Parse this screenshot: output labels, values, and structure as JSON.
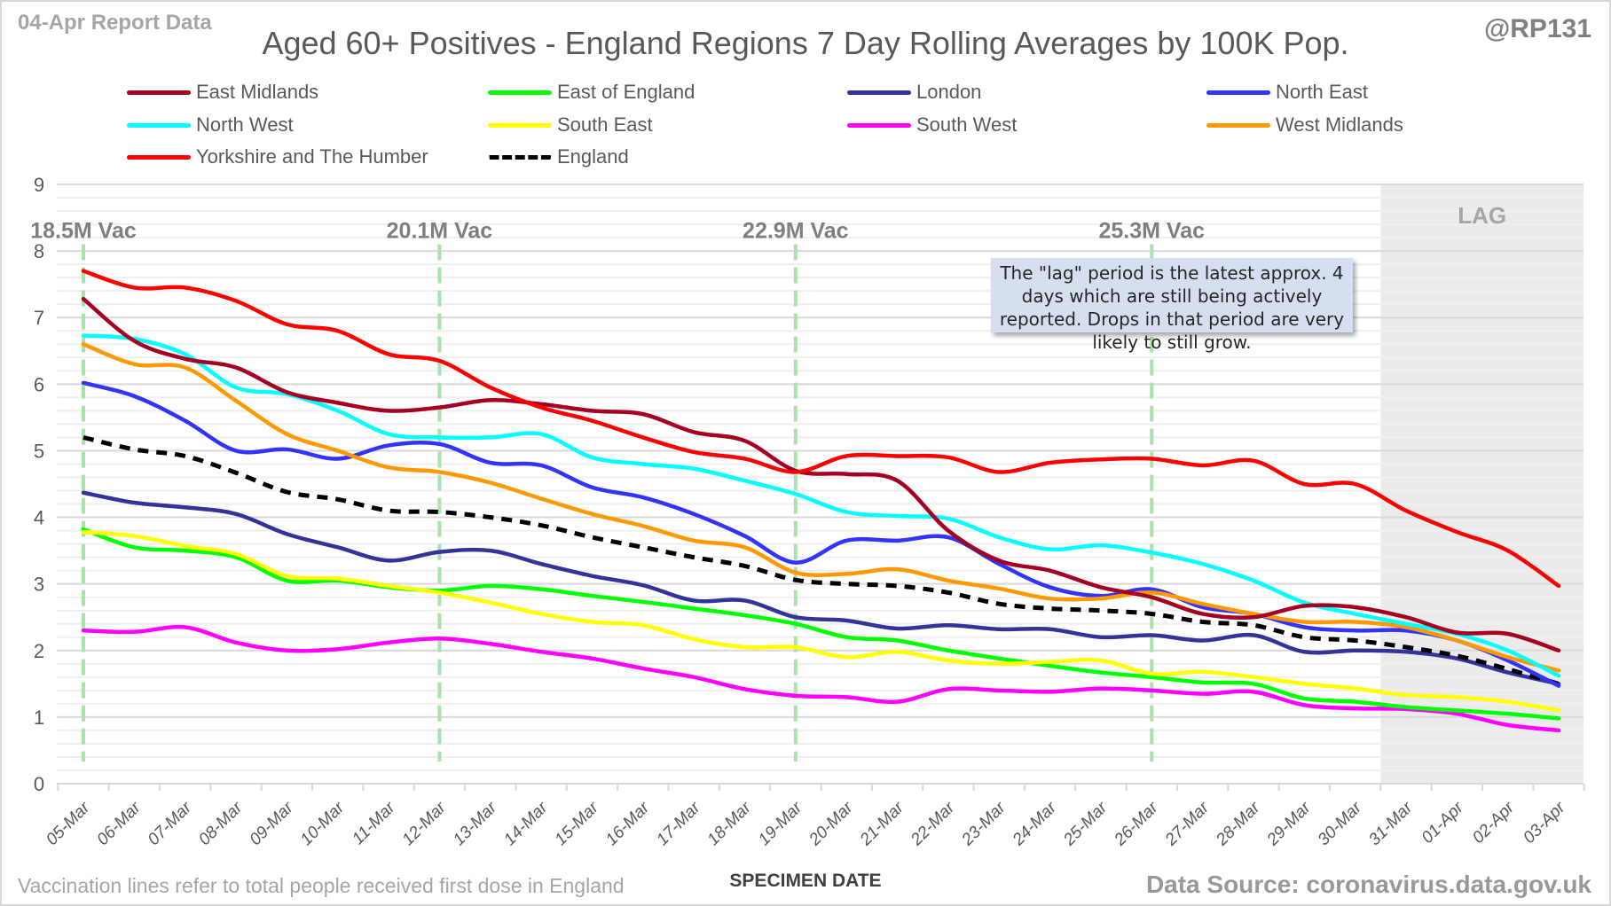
{
  "header": {
    "report_date": "04-Apr Report Data",
    "title": "Aged 60+ Positives - England Regions 7 Day Rolling Averages by 100K Pop.",
    "handle": "@RP131"
  },
  "footer": {
    "footnote": "Vaccination lines refer to total people received first dose in England",
    "source": "Data Source: coronavirus.data.gov.uk"
  },
  "note": "The \"lag\" period is the latest approx. 4 days which are still being actively reported. Drops in that period are very likely to still grow.",
  "chart_data": {
    "type": "line",
    "title": "Aged 60+ Positives - England Regions 7 Day Rolling Averages by 100K Pop.",
    "xlabel": "SPECIMEN DATE",
    "ylabel": "",
    "ylim": [
      0,
      9
    ],
    "yticks": [
      0,
      1,
      2,
      3,
      4,
      5,
      6,
      7,
      8,
      9
    ],
    "grid": true,
    "legend_position": "top",
    "x": [
      "05-Mar",
      "06-Mar",
      "07-Mar",
      "08-Mar",
      "09-Mar",
      "10-Mar",
      "11-Mar",
      "12-Mar",
      "13-Mar",
      "14-Mar",
      "15-Mar",
      "16-Mar",
      "17-Mar",
      "18-Mar",
      "19-Mar",
      "20-Mar",
      "21-Mar",
      "22-Mar",
      "23-Mar",
      "24-Mar",
      "25-Mar",
      "26-Mar",
      "27-Mar",
      "28-Mar",
      "29-Mar",
      "30-Mar",
      "31-Mar",
      "01-Apr",
      "02-Apr",
      "03-Apr"
    ],
    "series": [
      {
        "name": "East Midlands",
        "color": "#a50021",
        "dashed": false,
        "values": [
          7.28,
          6.65,
          6.38,
          6.25,
          5.88,
          5.72,
          5.6,
          5.65,
          5.76,
          5.7,
          5.6,
          5.55,
          5.28,
          5.15,
          4.7,
          4.65,
          4.55,
          3.8,
          3.35,
          3.2,
          2.95,
          2.8,
          2.55,
          2.5,
          2.67,
          2.65,
          2.5,
          2.27,
          2.25,
          2.0
        ]
      },
      {
        "name": "East of England",
        "color": "#00ff00",
        "dashed": false,
        "values": [
          3.82,
          3.55,
          3.5,
          3.4,
          3.05,
          3.05,
          2.95,
          2.9,
          2.97,
          2.92,
          2.82,
          2.73,
          2.63,
          2.53,
          2.4,
          2.2,
          2.15,
          2.0,
          1.88,
          1.77,
          1.67,
          1.6,
          1.52,
          1.5,
          1.28,
          1.23,
          1.15,
          1.1,
          1.05,
          0.98
        ]
      },
      {
        "name": "London",
        "color": "#333399",
        "dashed": false,
        "values": [
          4.37,
          4.22,
          4.15,
          4.05,
          3.75,
          3.55,
          3.35,
          3.48,
          3.5,
          3.3,
          3.12,
          2.98,
          2.75,
          2.75,
          2.5,
          2.45,
          2.33,
          2.38,
          2.32,
          2.32,
          2.2,
          2.23,
          2.15,
          2.23,
          1.98,
          2.0,
          1.98,
          1.88,
          1.67,
          1.5
        ]
      },
      {
        "name": "North East",
        "color": "#3333ff",
        "dashed": false,
        "values": [
          6.02,
          5.82,
          5.45,
          5.0,
          5.02,
          4.88,
          5.08,
          5.1,
          4.82,
          4.78,
          4.45,
          4.3,
          4.05,
          3.72,
          3.32,
          3.65,
          3.65,
          3.7,
          3.3,
          2.95,
          2.82,
          2.92,
          2.65,
          2.55,
          2.35,
          2.3,
          2.3,
          2.15,
          1.85,
          1.47
        ]
      },
      {
        "name": "North West",
        "color": "#00ffff",
        "dashed": false,
        "values": [
          6.73,
          6.68,
          6.45,
          5.95,
          5.85,
          5.6,
          5.25,
          5.2,
          5.2,
          5.25,
          4.9,
          4.8,
          4.73,
          4.55,
          4.35,
          4.08,
          4.02,
          3.98,
          3.7,
          3.52,
          3.58,
          3.47,
          3.3,
          3.05,
          2.72,
          2.55,
          2.4,
          2.25,
          2.0,
          1.62
        ]
      },
      {
        "name": "South East",
        "color": "#ffff00",
        "dashed": false,
        "values": [
          3.78,
          3.72,
          3.57,
          3.45,
          3.12,
          3.08,
          2.97,
          2.87,
          2.72,
          2.55,
          2.43,
          2.38,
          2.17,
          2.05,
          2.05,
          1.9,
          1.98,
          1.85,
          1.8,
          1.83,
          1.85,
          1.65,
          1.68,
          1.6,
          1.5,
          1.43,
          1.33,
          1.3,
          1.23,
          1.1
        ]
      },
      {
        "name": "South West",
        "color": "#ff00ff",
        "dashed": false,
        "values": [
          2.3,
          2.28,
          2.35,
          2.12,
          2.0,
          2.02,
          2.12,
          2.18,
          2.1,
          1.98,
          1.88,
          1.73,
          1.6,
          1.42,
          1.32,
          1.3,
          1.23,
          1.42,
          1.4,
          1.38,
          1.43,
          1.4,
          1.35,
          1.38,
          1.18,
          1.13,
          1.12,
          1.05,
          0.88,
          0.8
        ]
      },
      {
        "name": "West Midlands",
        "color": "#ff9900",
        "dashed": false,
        "values": [
          6.6,
          6.3,
          6.25,
          5.75,
          5.25,
          5.0,
          4.75,
          4.68,
          4.52,
          4.28,
          4.05,
          3.87,
          3.65,
          3.55,
          3.17,
          3.15,
          3.22,
          3.05,
          2.93,
          2.78,
          2.78,
          2.87,
          2.7,
          2.55,
          2.43,
          2.43,
          2.35,
          2.15,
          1.9,
          1.7
        ]
      },
      {
        "name": "Yorkshire and The Humber",
        "color": "#ff0000",
        "dashed": false,
        "values": [
          7.7,
          7.45,
          7.45,
          7.25,
          6.9,
          6.8,
          6.45,
          6.35,
          5.95,
          5.65,
          5.45,
          5.2,
          4.98,
          4.88,
          4.68,
          4.92,
          4.92,
          4.9,
          4.68,
          4.82,
          4.87,
          4.88,
          4.78,
          4.85,
          4.5,
          4.5,
          4.1,
          3.78,
          3.5,
          2.97
        ]
      },
      {
        "name": "England",
        "color": "#000000",
        "dashed": true,
        "values": [
          5.2,
          5.02,
          4.92,
          4.67,
          4.38,
          4.27,
          4.1,
          4.08,
          4.0,
          3.88,
          3.7,
          3.55,
          3.4,
          3.27,
          3.06,
          3.0,
          2.97,
          2.87,
          2.7,
          2.63,
          2.6,
          2.55,
          2.43,
          2.38,
          2.2,
          2.15,
          2.05,
          1.92,
          1.72,
          1.5
        ]
      }
    ],
    "annotations": {
      "vaccination_lines": [
        {
          "date": "05-Mar",
          "label": "18.5M Vac"
        },
        {
          "date": "12-Mar",
          "label": "20.1M Vac"
        },
        {
          "date": "19-Mar",
          "label": "22.9M Vac"
        },
        {
          "date": "26-Mar",
          "label": "25.3M Vac"
        }
      ],
      "lag_region": {
        "start": "31-Mar",
        "end": "03-Apr",
        "label": "LAG"
      }
    }
  }
}
